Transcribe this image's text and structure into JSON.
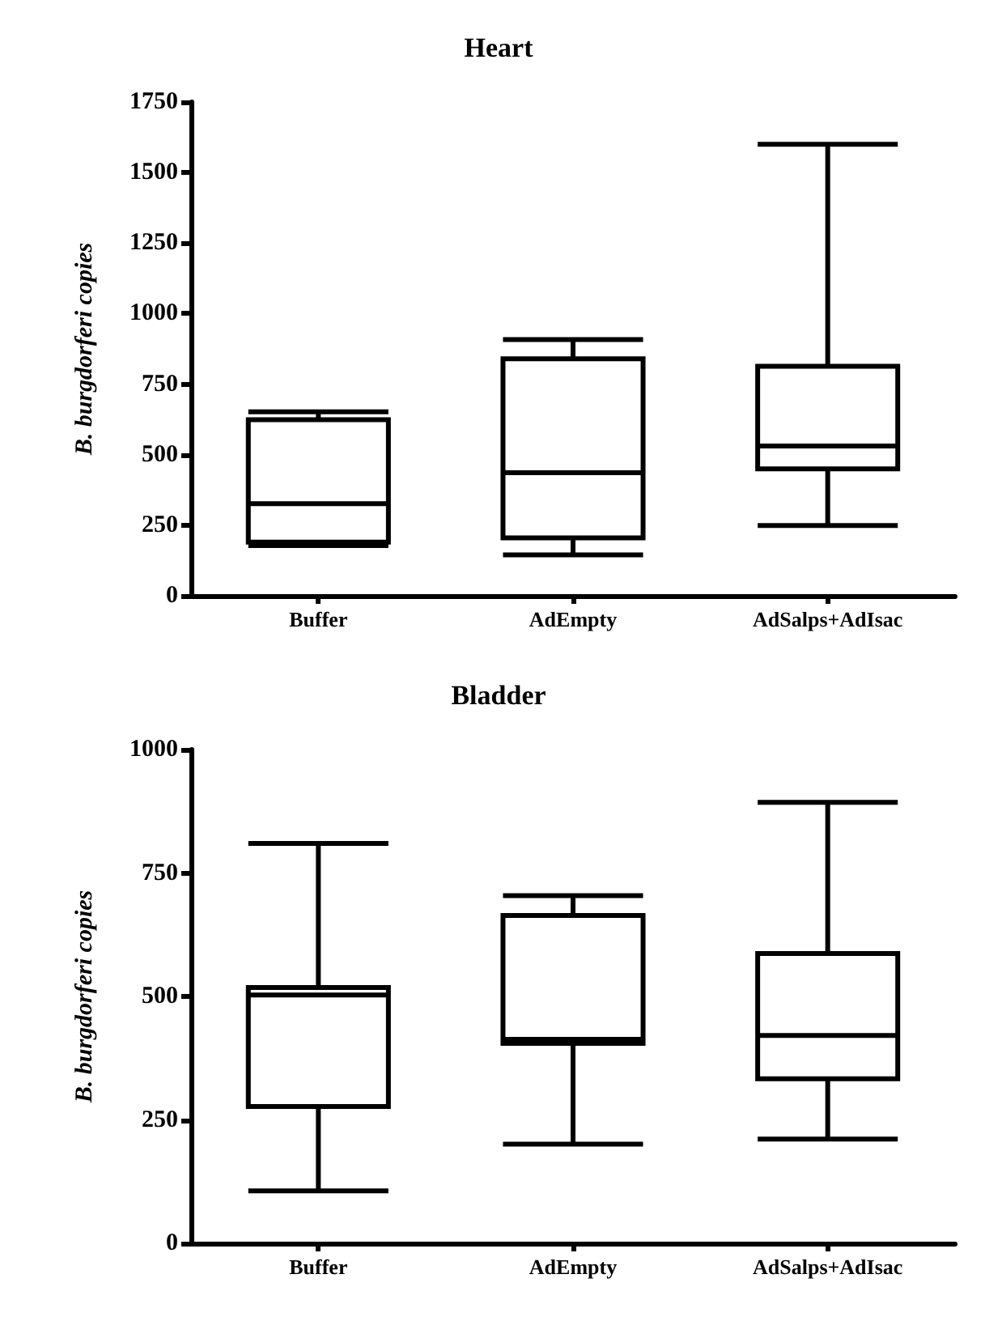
{
  "chart_data": [
    {
      "type": "box",
      "title": "Heart",
      "ylabel": "B. burgdorferi copies",
      "categories": [
        "Buffer",
        "AdEmpty",
        "AdSalps+AdIsac"
      ],
      "color": "#000000",
      "ylim": [
        0,
        1750
      ],
      "yticks": [
        0,
        250,
        500,
        750,
        1000,
        1250,
        1500,
        1750
      ],
      "grid": false,
      "boxes": [
        {
          "low": 178,
          "q1": 190,
          "median": 326,
          "q3": 624,
          "high": 652
        },
        {
          "low": 145,
          "q1": 205,
          "median": 436,
          "q3": 840,
          "high": 908
        },
        {
          "low": 249,
          "q1": 450,
          "median": 531,
          "q3": 813,
          "high": 1600
        }
      ]
    },
    {
      "type": "box",
      "title": "Bladder",
      "ylabel": "B. burgdorferi copies",
      "categories": [
        "Buffer",
        "AdEmpty",
        "AdSalps+AdIsac"
      ],
      "color": "#000000",
      "ylim": [
        0,
        1000
      ],
      "yticks": [
        0,
        250,
        500,
        750,
        1000
      ],
      "grid": false,
      "boxes": [
        {
          "low": 106,
          "q1": 277,
          "median": 503,
          "q3": 518,
          "high": 810
        },
        {
          "low": 201,
          "q1": 405,
          "median": 413,
          "q3": 664,
          "high": 704
        },
        {
          "low": 211,
          "q1": 333,
          "median": 421,
          "q3": 587,
          "high": 893
        }
      ]
    }
  ]
}
